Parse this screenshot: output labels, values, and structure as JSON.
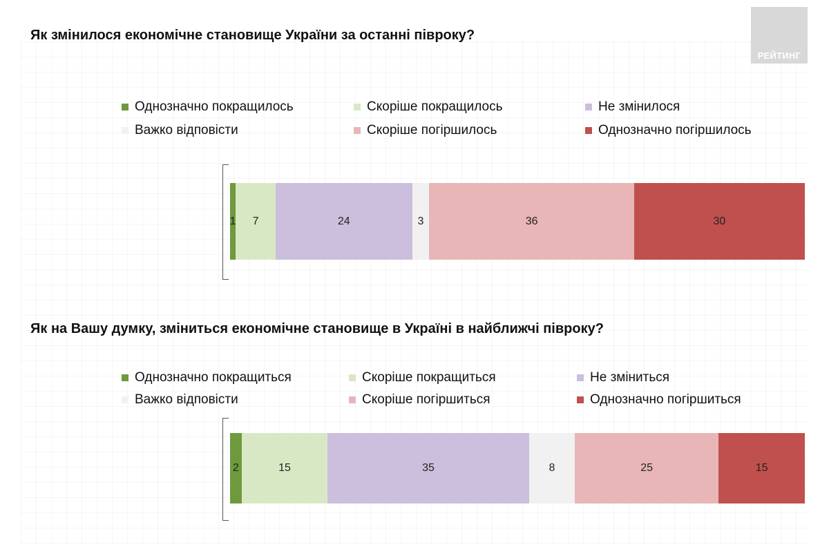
{
  "logo_text": "РЕЙТИНГ",
  "chart_data": [
    {
      "type": "bar",
      "stacked": true,
      "orientation": "horizontal",
      "title": "Як змінилося економічне становище України за останні півроку?",
      "categories": [
        "Однозначно покращилось",
        "Скоріше покращилось",
        "Не змінилося",
        "Важко відповісти",
        "Скоріше погіршилось",
        "Однозначно погіршилось"
      ],
      "values": [
        1,
        7,
        24,
        3,
        36,
        30
      ],
      "labels": [
        "1",
        "7",
        "24",
        "3",
        "36",
        "30"
      ],
      "colors": [
        "#6e9a3d",
        "#d9e8c4",
        "#cbbfdd",
        "#f1f1f1",
        "#e8b6b6",
        "#c0504d"
      ],
      "legend_position": "top",
      "xlim": [
        0,
        101
      ]
    },
    {
      "type": "bar",
      "stacked": true,
      "orientation": "horizontal",
      "title": "Як на Вашу думку, зміниться економічне становище в Україні в найближчі півроку?",
      "categories": [
        "Однозначно покращиться",
        "Скоріше покращиться",
        "Не зміниться",
        "Важко відповісти",
        "Скоріше погіршиться",
        "Однозначно погіршиться"
      ],
      "values": [
        2,
        15,
        35,
        8,
        25,
        15
      ],
      "labels": [
        "2",
        "15",
        "35",
        "8",
        "25",
        "15"
      ],
      "colors": [
        "#6e9a3d",
        "#d9e8c4",
        "#cbbfdd",
        "#f1f1f1",
        "#e8b6b6",
        "#c0504d"
      ],
      "legend_position": "top",
      "xlim": [
        0,
        100
      ]
    }
  ]
}
